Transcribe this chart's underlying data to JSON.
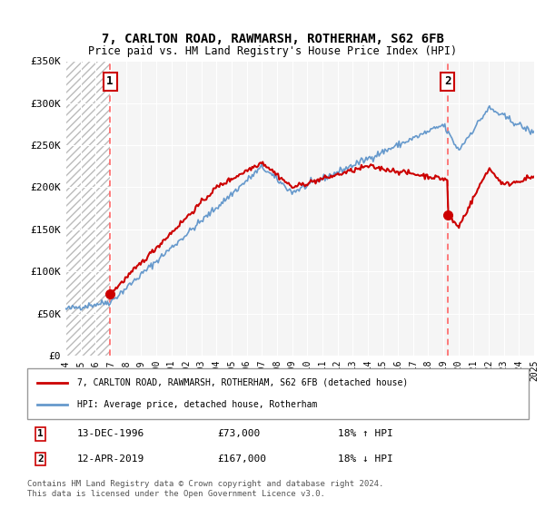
{
  "title_line1": "7, CARLTON ROAD, RAWMARSH, ROTHERHAM, S62 6FB",
  "title_line2": "Price paid vs. HM Land Registry's House Price Index (HPI)",
  "ylabel": "",
  "background_color": "#ffffff",
  "plot_bg_color": "#f0f0f0",
  "hatch_color": "#cccccc",
  "ylim": [
    0,
    350000
  ],
  "yticks": [
    0,
    50000,
    100000,
    150000,
    200000,
    250000,
    300000,
    350000
  ],
  "ytick_labels": [
    "£0",
    "£50K",
    "£100K",
    "£150K",
    "£200K",
    "£250K",
    "£300K",
    "£350K"
  ],
  "year_start": 1994,
  "year_end": 2025,
  "point1_year": 1996.95,
  "point1_value": 73000,
  "point1_label": "1",
  "point1_date": "13-DEC-1996",
  "point1_pct": "18% ↑ HPI",
  "point2_year": 2019.28,
  "point2_value": 167000,
  "point2_label": "2",
  "point2_date": "12-APR-2019",
  "point2_pct": "18% ↓ HPI",
  "red_line_color": "#cc0000",
  "blue_line_color": "#6699cc",
  "dotted_line_color": "#ff6666",
  "legend_label1": "7, CARLTON ROAD, RAWMARSH, ROTHERHAM, S62 6FB (detached house)",
  "legend_label2": "HPI: Average price, detached house, Rotherham",
  "footer": "Contains HM Land Registry data © Crown copyright and database right 2024.\nThis data is licensed under the Open Government Licence v3.0."
}
